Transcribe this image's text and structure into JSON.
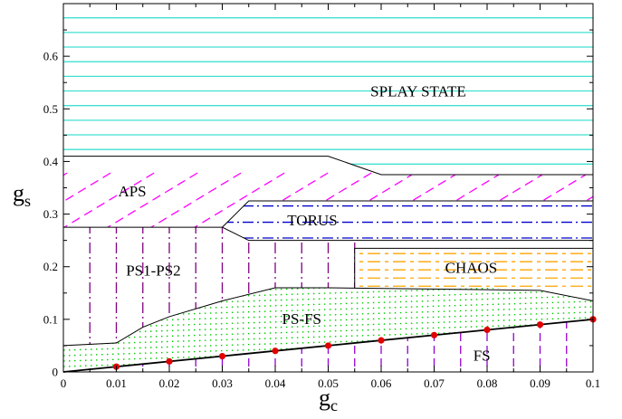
{
  "chart_data": {
    "type": "line",
    "title": "",
    "xlabel": "g",
    "xlabel_sub": "c",
    "ylabel": "g",
    "ylabel_sub": "s",
    "xlim": [
      0,
      0.1
    ],
    "ylim": [
      0,
      0.7
    ],
    "xticks": [
      "0",
      "0.01",
      "0.02",
      "0.03",
      "0.04",
      "0.05",
      "0.06",
      "0.07",
      "0.08",
      "0.09",
      "0.1"
    ],
    "yticks": [
      "0",
      "0.1",
      "0.2",
      "0.3",
      "0.4",
      "0.5",
      "0.6"
    ],
    "grid": false,
    "boundaries": [
      {
        "name": "fs-line",
        "x": [
          0,
          0.1
        ],
        "y": [
          0,
          0.1
        ]
      },
      {
        "name": "psfs-upper",
        "x": [
          0,
          0.01,
          0.015,
          0.02,
          0.03,
          0.04,
          0.05,
          0.06,
          0.07,
          0.08,
          0.09,
          0.1
        ],
        "y": [
          0.05,
          0.055,
          0.085,
          0.105,
          0.135,
          0.16,
          0.16,
          0.16,
          0.16,
          0.16,
          0.155,
          0.135
        ]
      },
      {
        "name": "chaos-box",
        "x": [
          0.055,
          0.055,
          0.1
        ],
        "y": [
          0.16,
          0.235,
          0.235
        ]
      },
      {
        "name": "torus-lower",
        "x": [
          0.03,
          0.035,
          0.1
        ],
        "y": [
          0.275,
          0.25,
          0.25
        ]
      },
      {
        "name": "torus-upper",
        "x": [
          0.03,
          0.035,
          0.1
        ],
        "y": [
          0.275,
          0.325,
          0.325
        ]
      },
      {
        "name": "aps-lower",
        "x": [
          0,
          0.03
        ],
        "y": [
          0.275,
          0.275
        ]
      },
      {
        "name": "aps-upper",
        "x": [
          0,
          0.05,
          0.06,
          0.1
        ],
        "y": [
          0.41,
          0.41,
          0.375,
          0.375
        ]
      }
    ],
    "points": {
      "x": [
        0.01,
        0.02,
        0.03,
        0.04,
        0.05,
        0.06,
        0.07,
        0.08,
        0.09,
        0.1
      ],
      "y": [
        0.01,
        0.02,
        0.03,
        0.04,
        0.05,
        0.06,
        0.07,
        0.08,
        0.09,
        0.1
      ],
      "color": "#e00000"
    },
    "regions": [
      {
        "name": "SPLAY STATE",
        "label_x": 0.067,
        "label_y": 0.53,
        "pattern": "horizontal",
        "color": "#40e0d0"
      },
      {
        "name": "APS",
        "label_x": 0.013,
        "label_y": 0.34,
        "pattern": "diagonal",
        "color": "#ff00ff"
      },
      {
        "name": "TORUS",
        "label_x": 0.047,
        "label_y": 0.285,
        "pattern": "dashdot-horizontal",
        "color": "#0000cd"
      },
      {
        "name": "PS1-PS2",
        "label_x": 0.017,
        "label_y": 0.19,
        "pattern": "vertical-dashdot",
        "color": "#800080"
      },
      {
        "name": "CHAOS",
        "label_x": 0.077,
        "label_y": 0.195,
        "pattern": "dashed-horizontal",
        "color": "#ffa500"
      },
      {
        "name": "PS-FS",
        "label_x": 0.045,
        "label_y": 0.098,
        "pattern": "dots",
        "color": "#00cc00"
      },
      {
        "name": "FS",
        "label_x": 0.079,
        "label_y": 0.028,
        "pattern": "vertical-dashed",
        "color": "#9400d3"
      }
    ]
  }
}
